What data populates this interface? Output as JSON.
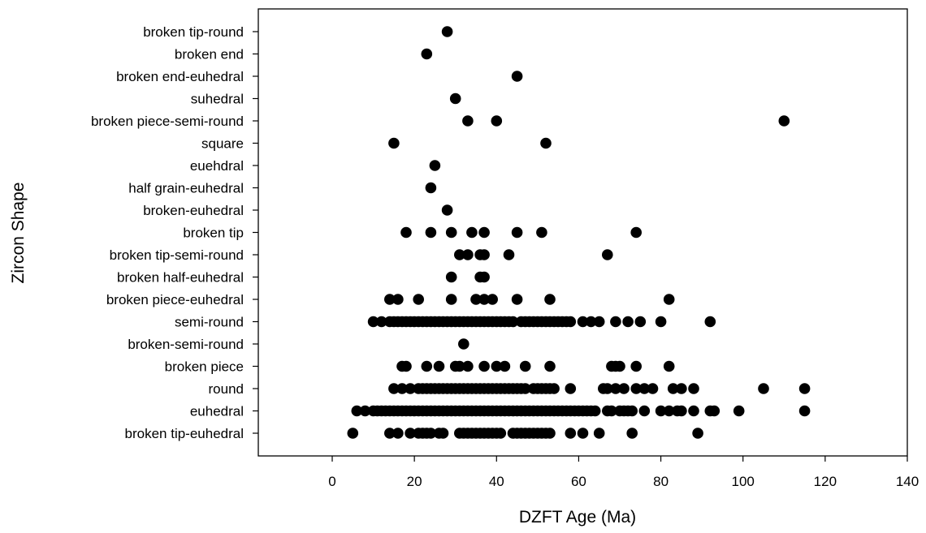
{
  "chart_data": {
    "type": "scatter",
    "title": "",
    "xlabel": "DZFT Age (Ma)",
    "ylabel": "Zircon Shape",
    "xlim": [
      -20,
      140
    ],
    "xticks": [
      0,
      20,
      40,
      60,
      80,
      100,
      120,
      140
    ],
    "grid": false,
    "categories": [
      "broken tip-round",
      "broken end",
      "broken end-euhedral",
      "suhedral",
      "broken piece-semi-round",
      "square",
      "euehdral",
      "half grain-euhedral",
      "broken-euhedral",
      "broken tip",
      "broken tip-semi-round",
      "broken half-euhedral",
      "broken piece-euhedral",
      "semi-round",
      "broken-semi-round",
      "broken piece",
      "round",
      "euhedral",
      "broken tip-euhedral"
    ],
    "points": {
      "broken tip-round": [
        28
      ],
      "broken end": [
        23
      ],
      "broken end-euhedral": [
        45
      ],
      "suhedral": [
        30
      ],
      "broken piece-semi-round": [
        33,
        40,
        110
      ],
      "square": [
        15,
        52
      ],
      "euehdral": [
        25
      ],
      "half grain-euhedral": [
        24
      ],
      "broken-euhedral": [
        28
      ],
      "broken tip": [
        18,
        24,
        29,
        34,
        37,
        45,
        51,
        74
      ],
      "broken tip-semi-round": [
        31,
        33,
        36,
        37,
        43,
        67
      ],
      "broken half-euhedral": [
        29,
        36,
        37
      ],
      "broken piece-euhedral": [
        14,
        16,
        21,
        29,
        35,
        37,
        39,
        45,
        53,
        82
      ],
      "semi-round": [
        10,
        12,
        14,
        15,
        16,
        17,
        18,
        19,
        20,
        21,
        22,
        23,
        24,
        25,
        26,
        27,
        28,
        29,
        30,
        31,
        32,
        33,
        34,
        35,
        36,
        37,
        38,
        39,
        40,
        41,
        42,
        43,
        44,
        46,
        47,
        48,
        49,
        50,
        51,
        52,
        53,
        54,
        55,
        56,
        57,
        58,
        61,
        63,
        65,
        69,
        72,
        75,
        80,
        92
      ],
      "broken-semi-round": [
        32
      ],
      "broken piece": [
        17,
        18,
        23,
        26,
        30,
        31,
        33,
        37,
        40,
        42,
        47,
        53,
        68,
        69,
        70,
        74,
        82
      ],
      "round": [
        15,
        17,
        19,
        21,
        22,
        23,
        24,
        25,
        26,
        27,
        28,
        29,
        30,
        31,
        32,
        33,
        34,
        35,
        36,
        37,
        38,
        39,
        40,
        41,
        42,
        43,
        44,
        45,
        46,
        47,
        49,
        50,
        51,
        52,
        53,
        54,
        58,
        66,
        67,
        69,
        71,
        74,
        76,
        78,
        83,
        85,
        88,
        105,
        115
      ],
      "euhedral": [
        6,
        8,
        10,
        11,
        12,
        13,
        14,
        15,
        16,
        17,
        18,
        19,
        20,
        21,
        22,
        23,
        24,
        25,
        26,
        27,
        28,
        29,
        30,
        31,
        32,
        33,
        34,
        35,
        36,
        37,
        38,
        39,
        40,
        41,
        42,
        43,
        44,
        45,
        46,
        47,
        48,
        49,
        50,
        51,
        52,
        53,
        54,
        55,
        56,
        57,
        58,
        59,
        60,
        61,
        62,
        63,
        64,
        67,
        68,
        70,
        71,
        72,
        73,
        76,
        80,
        82,
        84,
        85,
        88,
        92,
        93,
        99,
        115
      ],
      "broken tip-euhedral": [
        5,
        14,
        16,
        19,
        21,
        22,
        23,
        24,
        26,
        27,
        31,
        32,
        33,
        34,
        35,
        36,
        37,
        38,
        39,
        40,
        41,
        44,
        45,
        46,
        47,
        48,
        49,
        50,
        51,
        52,
        53,
        58,
        61,
        65,
        73,
        89
      ]
    },
    "marker": "filled-circle",
    "marker_color": "#000000"
  }
}
